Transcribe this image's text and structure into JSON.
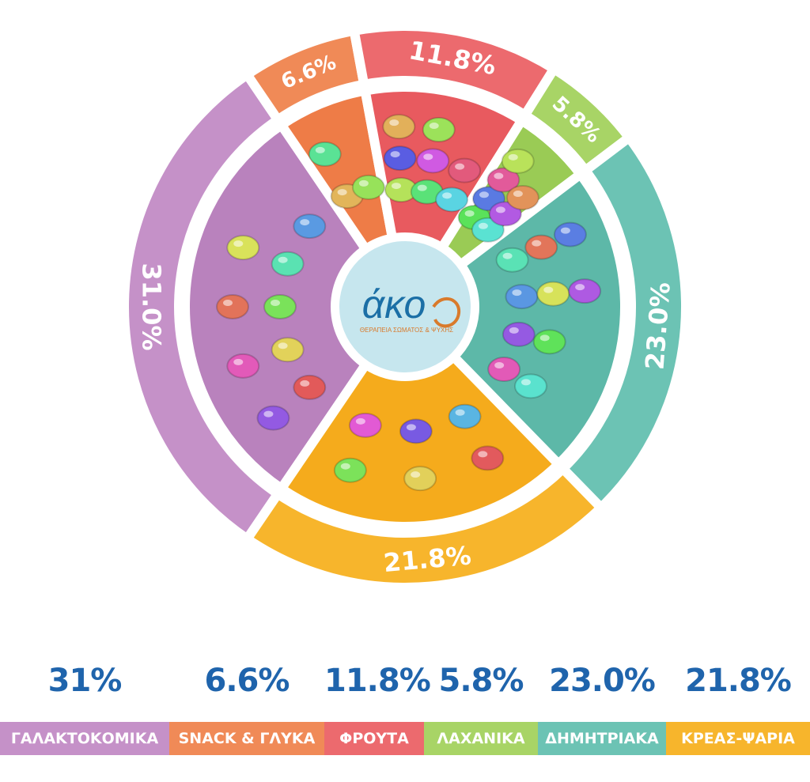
{
  "chart_data": {
    "type": "pie",
    "categories": [
      "ΓΑΛΑΚΤΟΚΟΜΙΚΑ",
      "SNACK & ΓΛΥΚΑ",
      "ΦΡΟΥΤΑ",
      "ΛΑΧΑΝΙΚΑ",
      "ΔΗΜΗΤΡΙΑΚΑ",
      "ΚΡΕΑΣ-ΨΑΡΙΑ"
    ],
    "values": [
      31.0,
      6.6,
      11.8,
      5.8,
      23.0,
      21.8
    ],
    "slice_labels": [
      "31.0%",
      "6.6%",
      "11.8%",
      "5.8%",
      "23.0%",
      "21.8%"
    ],
    "legend_values": [
      "31%",
      "6.6%",
      "11.8%",
      "5.8%",
      "23.0%",
      "21.8%"
    ],
    "colors": [
      "#c591c8",
      "#f08a57",
      "#ec6a6e",
      "#a8d466",
      "#6cc3b4",
      "#f7b52c"
    ],
    "inner_colors": [
      "#b982bd",
      "#ee7c47",
      "#e85a5f",
      "#9acb55",
      "#5db8a8",
      "#f5ab1c"
    ],
    "legend_placement": "bottom"
  },
  "logo": {
    "name": "άκο",
    "tagline": "ΘΕΡΑΠΕΙΑ ΣΩΜΑΤΟΣ & ΨΥΧΗΣ",
    "color": "#1b6fa6",
    "accent": "#d97a2b",
    "center_fill": "#c6e6ee"
  },
  "food_icons": {
    "ΓΑΛΑΚΤΟΚΟΜΙΚΑ": [
      "milk-bottle-icon",
      "yogurt-drink-icon",
      "cheese-wheel-icon",
      "rice-bowl-icon",
      "pudding-icon",
      "feta-icon",
      "blue-cheese-icon",
      "red-cheese-icon",
      "cheese-wedge-icon"
    ],
    "SNACK & ΓΛΥΚΑ": [
      "cookies-icon",
      "chocolate-icon",
      "ice-cream-icon"
    ],
    "ΦΡΟΥΤΑ": [
      "apple-icon",
      "watermelon-icon",
      "pear-icon",
      "kiwi-icon",
      "banana-icon",
      "grapes-icon",
      "peach-icon",
      "blackberry-icon"
    ],
    "ΛΑΧΑΝΙΚΑ": [
      "onion-icon",
      "tomato-icon",
      "pepper-icon",
      "avocado-icon",
      "orange-icon",
      "eggplant-icon",
      "carrot-icon"
    ],
    "ΔΗΜΗΤΡΙΑΚΑ": [
      "bread-slice-icon",
      "toast-icon",
      "flour-bag-icon",
      "pasta-icon",
      "spaghetti-icon",
      "baguette-icon",
      "corn-icon",
      "bagel-icon",
      "crackers-icon",
      "wheat-icon"
    ],
    "ΚΡΕΑΣ-ΨΑΡΙΑ": [
      "fish-icon",
      "salmon-steak-icon",
      "ham-icon",
      "sausages-icon",
      "roast-chicken-icon",
      "steak-icon"
    ]
  }
}
